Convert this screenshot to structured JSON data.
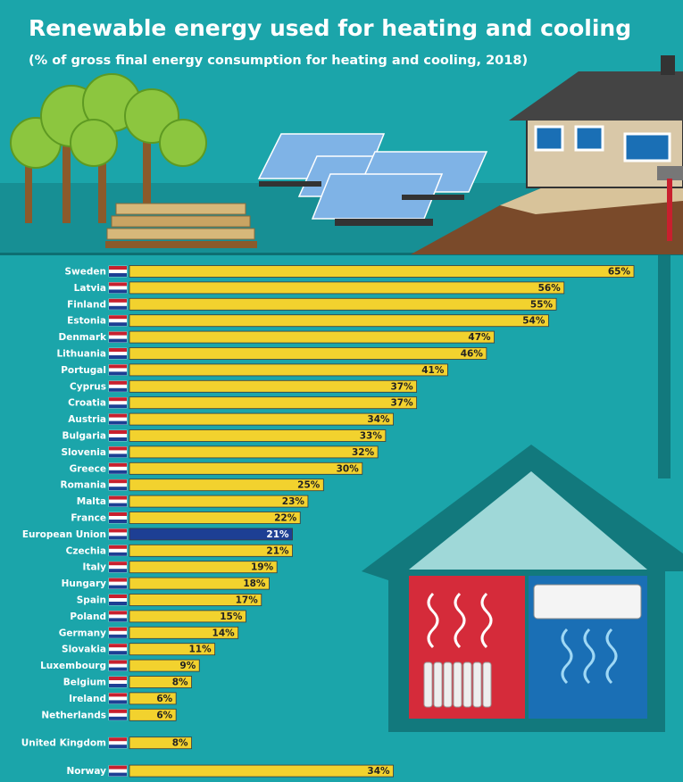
{
  "chart_data": {
    "type": "bar",
    "orientation": "horizontal",
    "title": "Renewable energy used for heating and cooling",
    "subtitle": "(% of gross final energy consumption for heating and cooling, 2018)",
    "categories": [
      "Sweden",
      "Latvia",
      "Finland",
      "Estonia",
      "Denmark",
      "Lithuania",
      "Portugal",
      "Cyprus",
      "Croatia",
      "Austria",
      "Bulgaria",
      "Slovenia",
      "Greece",
      "Romania",
      "Malta",
      "France",
      "European Union",
      "Czechia",
      "Italy",
      "Hungary",
      "Spain",
      "Poland",
      "Germany",
      "Slovakia",
      "Luxembourg",
      "Belgium",
      "Ireland",
      "Netherlands",
      "United Kingdom",
      "Norway"
    ],
    "values": [
      65,
      56,
      55,
      54,
      47,
      46,
      41,
      37,
      37,
      34,
      33,
      32,
      30,
      25,
      23,
      22,
      21,
      21,
      19,
      18,
      17,
      15,
      14,
      11,
      9,
      8,
      6,
      6,
      8,
      34
    ],
    "value_labels": [
      "65%",
      "56%",
      "55%",
      "54%",
      "47%",
      "46%",
      "41%",
      "37%",
      "37%",
      "34%",
      "33%",
      "32%",
      "30%",
      "25%",
      "23%",
      "22%",
      "21%",
      "21%",
      "19%",
      "18%",
      "17%",
      "15%",
      "14%",
      "11%",
      "9%",
      "8%",
      "6%",
      "6%",
      "8%",
      "34%"
    ],
    "colors": [
      "#f2d22e",
      "#f2d22e",
      "#f2d22e",
      "#f2d22e",
      "#f2d22e",
      "#f2d22e",
      "#f2d22e",
      "#f2d22e",
      "#f2d22e",
      "#f2d22e",
      "#f2d22e",
      "#f2d22e",
      "#f2d22e",
      "#f2d22e",
      "#f2d22e",
      "#f2d22e",
      "#1d3f94",
      "#f2d22e",
      "#f2d22e",
      "#f2d22e",
      "#f2d22e",
      "#f2d22e",
      "#f2d22e",
      "#f2d22e",
      "#f2d22e",
      "#f2d22e",
      "#f2d22e",
      "#f2d22e",
      "#f2d22e",
      "#f2d22e"
    ]
  }
}
